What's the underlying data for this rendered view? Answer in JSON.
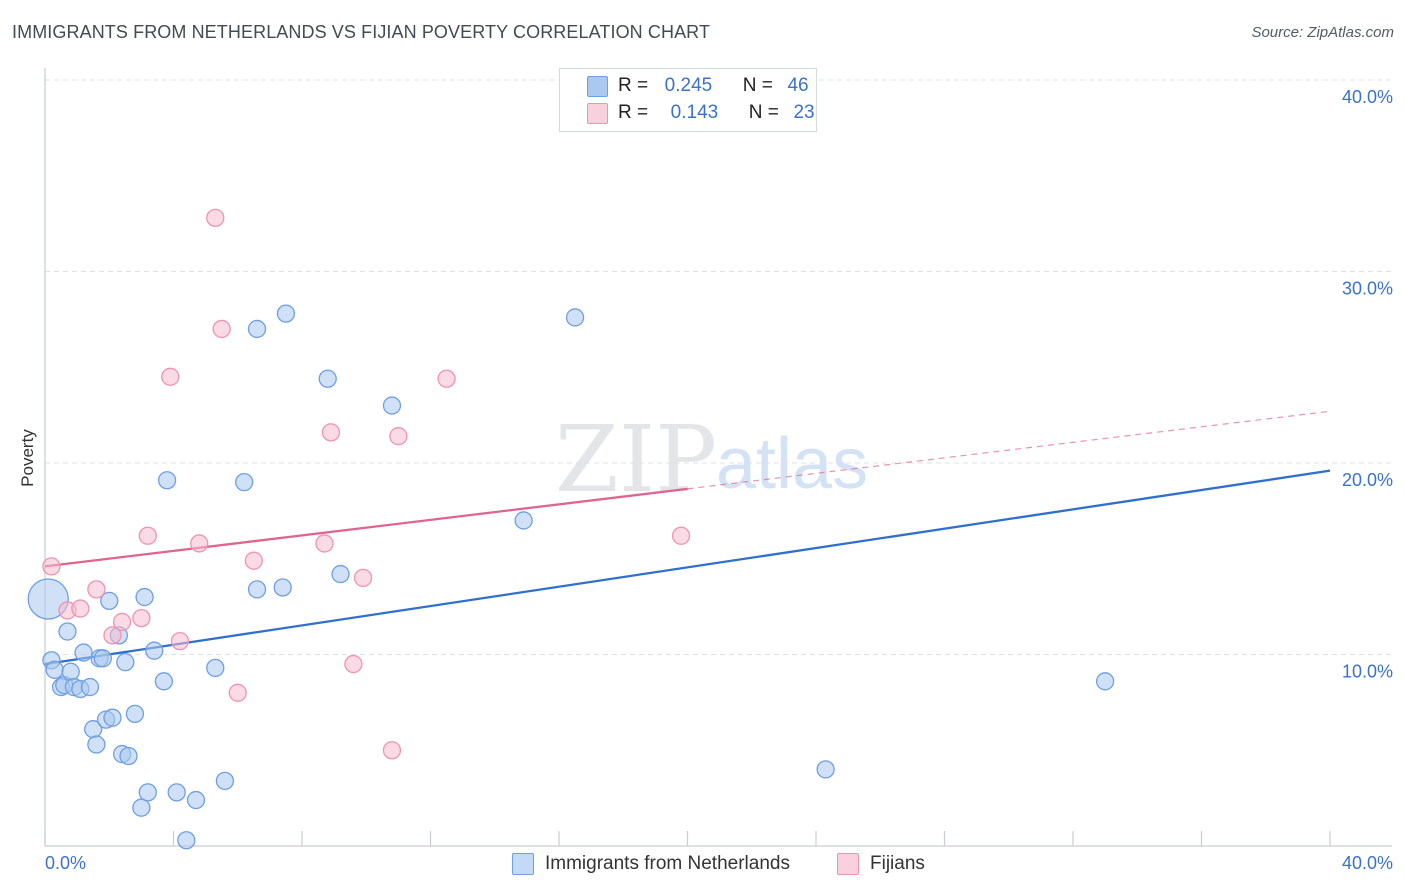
{
  "title": "IMMIGRANTS FROM NETHERLANDS VS FIJIAN POVERTY CORRELATION CHART",
  "source": "Source: ZipAtlas.com",
  "watermark": {
    "zip": "ZIP",
    "atlas": "atlas"
  },
  "colors": {
    "blue_fill": "#aac8f0",
    "blue_stroke": "#6f9fe0",
    "blue_line": "#2f6fd0",
    "pink_fill": "#f6bcd0",
    "pink_stroke": "#ee93b3",
    "pink_line": "#e0648f",
    "axis_label": "#3b72c8",
    "grid": "#dde0e4"
  },
  "legend": {
    "r_label": "R =",
    "n_label": "N =",
    "rows": [
      {
        "r": "0.245",
        "n": "46"
      },
      {
        "r": "0.143",
        "n": "23"
      }
    ]
  },
  "chart_data": {
    "type": "scatter",
    "xlabel": "",
    "ylabel": "Poverty",
    "xlim": [
      0,
      40
    ],
    "ylim": [
      0,
      40
    ],
    "x_tick_labels": [
      "0.0%",
      "40.0%"
    ],
    "y_ticks": [
      10,
      20,
      30,
      40
    ],
    "y_tick_labels": [
      "10.0%",
      "20.0%",
      "30.0%",
      "40.0%"
    ],
    "grid": true,
    "legend_position": "bottom-center",
    "series": [
      {
        "name": "Immigrants from Netherlands",
        "color": "#6f9fe0",
        "trend": {
          "x0": 0,
          "y0": 9.5,
          "x1": 40,
          "y1": 19.6,
          "solid_until": 40
        },
        "points": [
          {
            "x": 0.1,
            "y": 12.9,
            "big": true
          },
          {
            "x": 0.2,
            "y": 9.7
          },
          {
            "x": 0.3,
            "y": 9.2
          },
          {
            "x": 0.5,
            "y": 8.3
          },
          {
            "x": 0.6,
            "y": 8.4
          },
          {
            "x": 0.7,
            "y": 11.2
          },
          {
            "x": 0.8,
            "y": 9.1
          },
          {
            "x": 0.9,
            "y": 8.3
          },
          {
            "x": 1.1,
            "y": 8.2
          },
          {
            "x": 1.2,
            "y": 10.1
          },
          {
            "x": 1.4,
            "y": 8.3
          },
          {
            "x": 1.5,
            "y": 6.1
          },
          {
            "x": 1.6,
            "y": 5.3
          },
          {
            "x": 1.7,
            "y": 9.8
          },
          {
            "x": 1.8,
            "y": 9.8
          },
          {
            "x": 1.9,
            "y": 6.6
          },
          {
            "x": 2.0,
            "y": 12.8
          },
          {
            "x": 2.1,
            "y": 6.7
          },
          {
            "x": 2.3,
            "y": 11.0
          },
          {
            "x": 2.4,
            "y": 4.8
          },
          {
            "x": 2.5,
            "y": 9.6
          },
          {
            "x": 2.6,
            "y": 4.7
          },
          {
            "x": 2.8,
            "y": 6.9
          },
          {
            "x": 3.0,
            "y": 2.0
          },
          {
            "x": 3.1,
            "y": 13.0
          },
          {
            "x": 3.2,
            "y": 2.8
          },
          {
            "x": 3.4,
            "y": 10.2
          },
          {
            "x": 3.7,
            "y": 8.6
          },
          {
            "x": 3.8,
            "y": 19.1
          },
          {
            "x": 4.1,
            "y": 2.8
          },
          {
            "x": 4.4,
            "y": 0.3
          },
          {
            "x": 4.7,
            "y": 2.4
          },
          {
            "x": 5.3,
            "y": 9.3
          },
          {
            "x": 5.6,
            "y": 3.4
          },
          {
            "x": 6.2,
            "y": 19.0
          },
          {
            "x": 6.6,
            "y": 27.0
          },
          {
            "x": 6.6,
            "y": 13.4
          },
          {
            "x": 7.4,
            "y": 13.5
          },
          {
            "x": 7.5,
            "y": 27.8
          },
          {
            "x": 8.8,
            "y": 24.4
          },
          {
            "x": 9.2,
            "y": 14.2
          },
          {
            "x": 10.8,
            "y": 23.0
          },
          {
            "x": 14.9,
            "y": 17.0
          },
          {
            "x": 16.5,
            "y": 27.6
          },
          {
            "x": 24.3,
            "y": 4.0
          },
          {
            "x": 33.0,
            "y": 8.6
          }
        ]
      },
      {
        "name": "Fijians",
        "color": "#ee93b3",
        "trend": {
          "x0": 0,
          "y0": 14.6,
          "x1": 40,
          "y1": 22.7,
          "solid_until": 20.0
        },
        "points": [
          {
            "x": 0.2,
            "y": 14.6
          },
          {
            "x": 0.7,
            "y": 12.3
          },
          {
            "x": 1.1,
            "y": 12.4
          },
          {
            "x": 1.6,
            "y": 13.4
          },
          {
            "x": 2.1,
            "y": 11.0
          },
          {
            "x": 2.4,
            "y": 11.7
          },
          {
            "x": 3.0,
            "y": 11.9
          },
          {
            "x": 3.2,
            "y": 16.2
          },
          {
            "x": 3.9,
            "y": 24.5
          },
          {
            "x": 4.2,
            "y": 10.7
          },
          {
            "x": 4.8,
            "y": 15.8
          },
          {
            "x": 5.3,
            "y": 32.8
          },
          {
            "x": 5.5,
            "y": 27.0
          },
          {
            "x": 6.0,
            "y": 8.0
          },
          {
            "x": 6.5,
            "y": 14.9
          },
          {
            "x": 8.7,
            "y": 15.8
          },
          {
            "x": 8.9,
            "y": 21.6
          },
          {
            "x": 9.6,
            "y": 9.5
          },
          {
            "x": 9.9,
            "y": 14.0
          },
          {
            "x": 10.8,
            "y": 5.0
          },
          {
            "x": 11.0,
            "y": 21.4
          },
          {
            "x": 12.5,
            "y": 24.4
          },
          {
            "x": 19.8,
            "y": 16.2
          }
        ]
      }
    ]
  }
}
